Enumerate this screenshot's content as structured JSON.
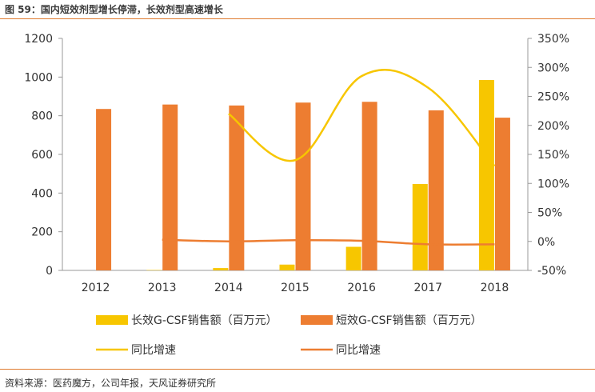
{
  "title": "图 59：国内短效剂型增长停滞，长效剂型高速增长",
  "source": "资料来源：医药魔方，公司年报，天风证券研究所",
  "colors": {
    "long": "#f7c600",
    "short": "#ed7d31",
    "rule": "#e07b2f"
  },
  "chart_data": {
    "type": "bar",
    "categories": [
      "2012",
      "2013",
      "2014",
      "2015",
      "2016",
      "2017",
      "2018"
    ],
    "series": [
      {
        "name": "长效G-CSF销售额（百万元）",
        "kind": "bar",
        "axis": "left",
        "color": "#f7c600",
        "values": [
          0,
          2,
          12,
          30,
          122,
          447,
          985
        ]
      },
      {
        "name": "短效G-CSF销售额（百万元）",
        "kind": "bar",
        "axis": "left",
        "color": "#ed7d31",
        "values": [
          835,
          858,
          853,
          868,
          872,
          828,
          790
        ]
      },
      {
        "name": "同比增速",
        "kind": "line",
        "axis": "right",
        "color": "#f7c600",
        "values": [
          null,
          null,
          220,
          140,
          285,
          265,
          130
        ]
      },
      {
        "name": "同比增速",
        "kind": "line",
        "axis": "right",
        "color": "#ed7d31",
        "values": [
          null,
          3,
          0,
          2,
          1,
          -5,
          -5
        ]
      }
    ],
    "yleft": {
      "min": 0,
      "max": 1200,
      "step": 200
    },
    "yright": {
      "min": -50,
      "max": 350,
      "step": 50
    },
    "legend_position": "bottom",
    "grid": false
  }
}
